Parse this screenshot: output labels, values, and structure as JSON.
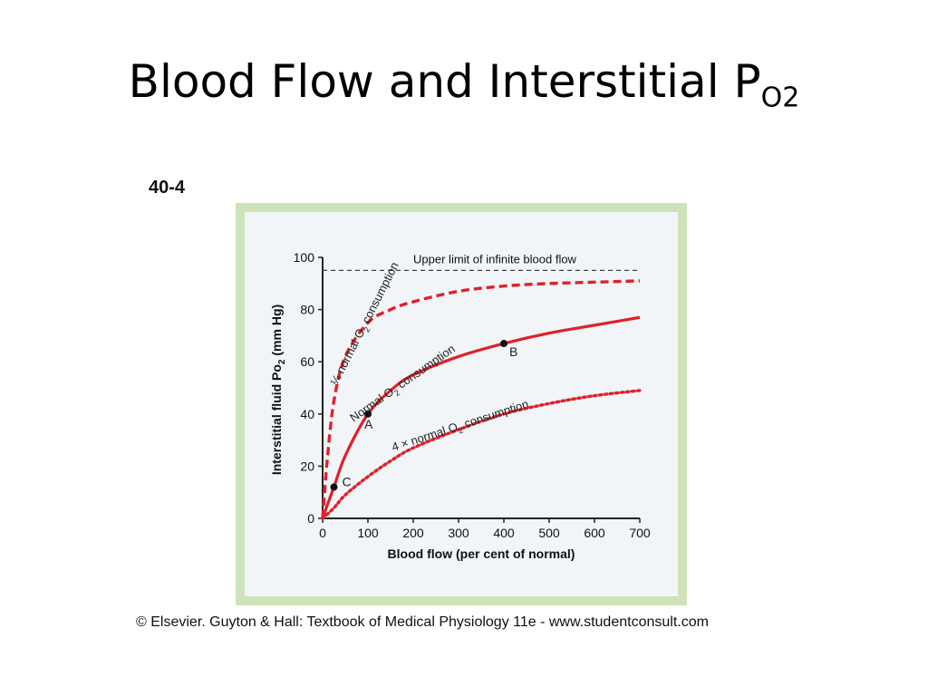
{
  "slide": {
    "title_main": "Blood Flow and Interstitial P",
    "title_sub": "O2",
    "figure_number": "40-4",
    "credit": "© Elsevier. Guyton & Hall: Textbook of Medical Physiology 11e - www.studentconsult.com"
  },
  "colors": {
    "curve": "#e0202a",
    "axis": "#222222",
    "reference": "#444444",
    "frame": "#cfe3b8",
    "plot_bg": "#f1f5f8"
  },
  "chart_data": {
    "type": "line",
    "xlabel": "Blood flow (per cent of normal)",
    "ylabel_main": "Interstitial fluid Po",
    "ylabel_sub": "2",
    "ylabel_unit": " (mm Hg)",
    "xlim": [
      0,
      700
    ],
    "ylim": [
      0,
      100
    ],
    "x_ticks": [
      0,
      100,
      200,
      300,
      400,
      500,
      600,
      700
    ],
    "y_ticks": [
      0,
      20,
      40,
      60,
      80,
      100
    ],
    "reference_line": {
      "y": 95,
      "label": "Upper limit of infinite blood flow"
    },
    "series": [
      {
        "label_pre": "¼ normal O",
        "label_sub": "2",
        "label_post": " consumption",
        "style": "dashed",
        "x": [
          0,
          10,
          25,
          50,
          100,
          150,
          200,
          300,
          400,
          500,
          600,
          700
        ],
        "y": [
          0,
          22,
          45,
          62,
          75,
          80,
          83,
          87,
          89,
          90,
          90.5,
          91
        ]
      },
      {
        "label_pre": "Normal O",
        "label_sub": "2",
        "label_post": " consumption",
        "style": "solid",
        "x": [
          0,
          10,
          25,
          50,
          100,
          150,
          200,
          300,
          400,
          500,
          600,
          700
        ],
        "y": [
          0,
          5,
          12,
          24,
          40,
          49,
          55,
          62,
          67,
          71,
          74,
          77
        ]
      },
      {
        "label_pre": "4 × normal O",
        "label_sub": "2",
        "label_post": " consumption",
        "style": "dotted",
        "x": [
          0,
          25,
          50,
          100,
          150,
          200,
          300,
          400,
          500,
          600,
          700
        ],
        "y": [
          0,
          4,
          9,
          16,
          22,
          27,
          34,
          40,
          44,
          47,
          49
        ]
      }
    ],
    "points": [
      {
        "label": "A",
        "x": 100,
        "y": 40
      },
      {
        "label": "B",
        "x": 400,
        "y": 67
      },
      {
        "label": "C",
        "x": 25,
        "y": 12
      }
    ]
  }
}
